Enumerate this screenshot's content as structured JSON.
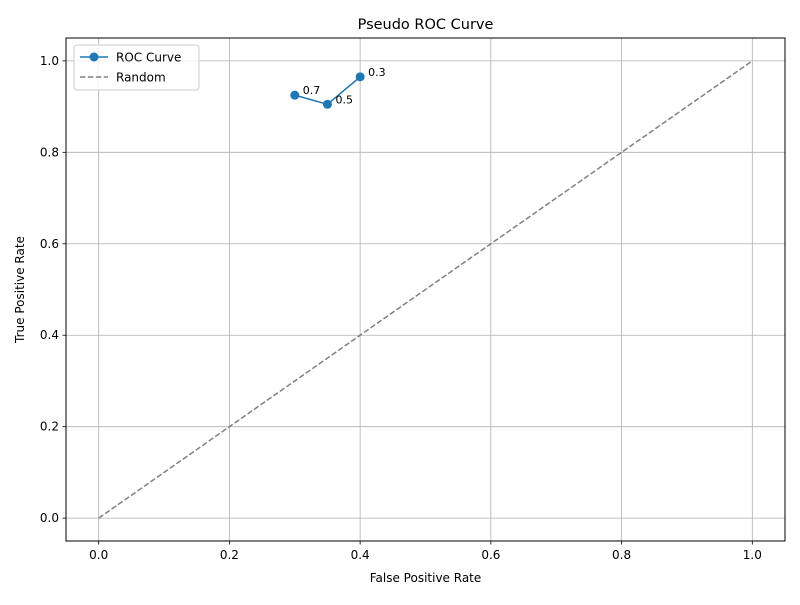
{
  "chart_data": {
    "type": "line",
    "title": "Pseudo ROC Curve",
    "xlabel": "False Positive Rate",
    "ylabel": "True Positive Rate",
    "xlim": [
      -0.05,
      1.05
    ],
    "ylim": [
      -0.05,
      1.05
    ],
    "xticks": [
      "0.0",
      "0.2",
      "0.4",
      "0.6",
      "0.8",
      "1.0"
    ],
    "yticks": [
      "0.0",
      "0.2",
      "0.4",
      "0.6",
      "0.8",
      "1.0"
    ],
    "grid": true,
    "legend_position": "top-left",
    "series": [
      {
        "name": "ROC Curve",
        "style": "solid-line-with-markers",
        "color": "#1f77b4",
        "points": [
          {
            "x": 0.3,
            "y": 0.925,
            "label": "0.7"
          },
          {
            "x": 0.35,
            "y": 0.905,
            "label": "0.5"
          },
          {
            "x": 0.4,
            "y": 0.965,
            "label": "0.3"
          }
        ]
      },
      {
        "name": "Random",
        "style": "dashed-line",
        "color": "#808080",
        "points": [
          {
            "x": 0.0,
            "y": 0.0
          },
          {
            "x": 1.0,
            "y": 1.0
          }
        ]
      }
    ]
  }
}
